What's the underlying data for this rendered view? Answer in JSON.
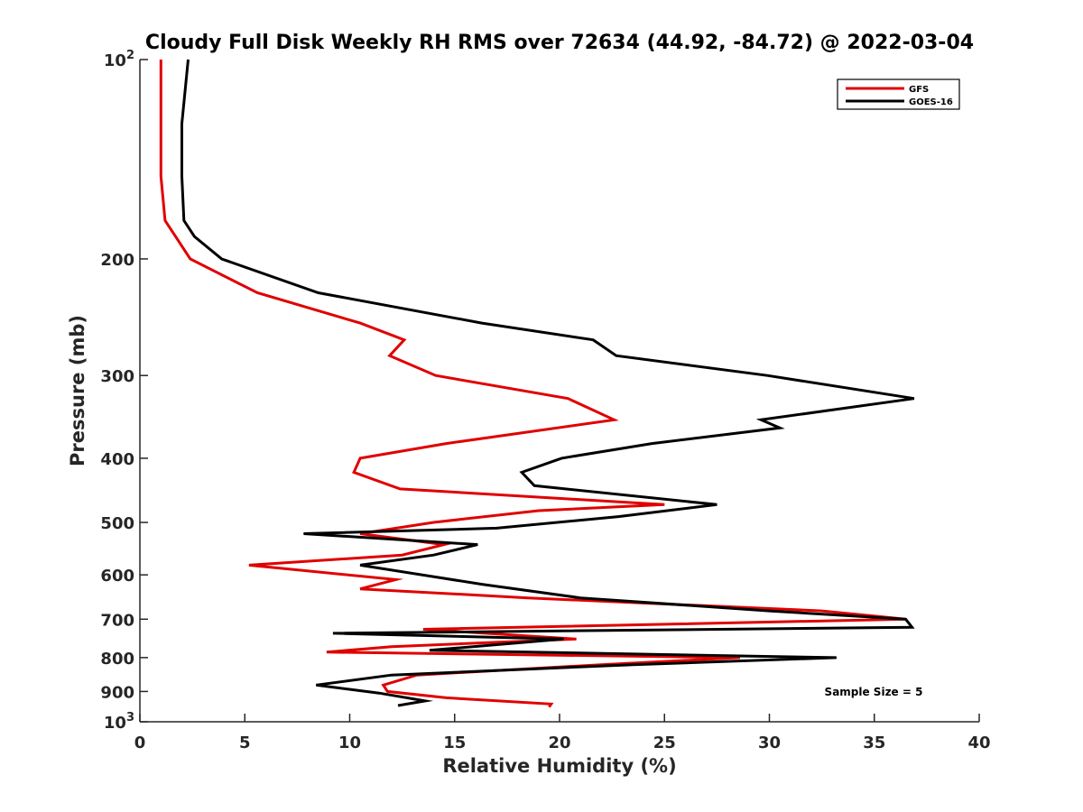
{
  "chart_data": {
    "type": "line",
    "title": "Cloudy Full Disk Weekly RH RMS over 72634 (44.92, -84.72) @ 2022-03-04",
    "xlabel": "Relative Humidity (%)",
    "ylabel": "Pressure (mb)",
    "xlim": [
      0,
      40
    ],
    "ylim": [
      1000,
      100
    ],
    "yscale": "log",
    "y_reversed": true,
    "x_ticks": [
      0,
      5,
      10,
      15,
      20,
      25,
      30,
      35,
      40
    ],
    "y_ticks": [
      {
        "value": 100,
        "label": "10",
        "sup": "2"
      },
      {
        "value": 200,
        "label": "200",
        "sup": ""
      },
      {
        "value": 300,
        "label": "300",
        "sup": ""
      },
      {
        "value": 400,
        "label": "400",
        "sup": ""
      },
      {
        "value": 500,
        "label": "500",
        "sup": ""
      },
      {
        "value": 600,
        "label": "600",
        "sup": ""
      },
      {
        "value": 700,
        "label": "700",
        "sup": ""
      },
      {
        "value": 800,
        "label": "800",
        "sup": ""
      },
      {
        "value": 900,
        "label": "900",
        "sup": ""
      },
      {
        "value": 1000,
        "label": "10",
        "sup": "3"
      }
    ],
    "grid": false,
    "legend_position": "top-right",
    "annotation": "Sample Size = 5",
    "series": [
      {
        "name": "GFS",
        "color": "#e00000",
        "points": [
          [
            1.0,
            100
          ],
          [
            1.0,
            125
          ],
          [
            1.0,
            150
          ],
          [
            1.2,
            175
          ],
          [
            1.7,
            185
          ],
          [
            2.4,
            200
          ],
          [
            5.6,
            225
          ],
          [
            10.5,
            250
          ],
          [
            12.6,
            265
          ],
          [
            11.9,
            280
          ],
          [
            14.1,
            300
          ],
          [
            20.4,
            325
          ],
          [
            22.6,
            350
          ],
          [
            14.6,
            380
          ],
          [
            10.5,
            400
          ],
          [
            10.2,
            420
          ],
          [
            12.4,
            445
          ],
          [
            25.0,
            470
          ],
          [
            19.0,
            480
          ],
          [
            14.0,
            500
          ],
          [
            10.5,
            520
          ],
          [
            14.5,
            540
          ],
          [
            12.5,
            560
          ],
          [
            5.2,
            580
          ],
          [
            12.2,
            610
          ],
          [
            10.5,
            630
          ],
          [
            18.5,
            650
          ],
          [
            32.5,
            680
          ],
          [
            36.5,
            700
          ],
          [
            13.5,
            725
          ],
          [
            20.8,
            750
          ],
          [
            12.0,
            770
          ],
          [
            8.9,
            785
          ],
          [
            28.6,
            800
          ],
          [
            22.0,
            820
          ],
          [
            13.2,
            850
          ],
          [
            11.6,
            880
          ],
          [
            11.8,
            900
          ],
          [
            14.6,
            920
          ],
          [
            19.6,
            940
          ],
          [
            19.5,
            950
          ]
        ]
      },
      {
        "name": "GOES-16",
        "color": "#000000",
        "points": [
          [
            2.3,
            100
          ],
          [
            2.0,
            125
          ],
          [
            2.0,
            150
          ],
          [
            2.1,
            175
          ],
          [
            2.6,
            185
          ],
          [
            3.9,
            200
          ],
          [
            8.5,
            225
          ],
          [
            16.3,
            250
          ],
          [
            21.6,
            265
          ],
          [
            22.7,
            280
          ],
          [
            29.9,
            300
          ],
          [
            36.9,
            325
          ],
          [
            29.6,
            350
          ],
          [
            30.5,
            360
          ],
          [
            24.4,
            380
          ],
          [
            20.1,
            400
          ],
          [
            18.2,
            420
          ],
          [
            18.8,
            440
          ],
          [
            27.5,
            470
          ],
          [
            22.8,
            490
          ],
          [
            17.0,
            510
          ],
          [
            7.8,
            520
          ],
          [
            16.1,
            540
          ],
          [
            14.0,
            560
          ],
          [
            10.5,
            580
          ],
          [
            16.3,
            620
          ],
          [
            21.0,
            650
          ],
          [
            30.0,
            680
          ],
          [
            36.5,
            700
          ],
          [
            36.8,
            720
          ],
          [
            9.2,
            735
          ],
          [
            20.2,
            750
          ],
          [
            13.8,
            780
          ],
          [
            33.2,
            800
          ],
          [
            23.5,
            820
          ],
          [
            12.0,
            850
          ],
          [
            8.4,
            880
          ],
          [
            11.4,
            905
          ],
          [
            13.6,
            930
          ],
          [
            12.3,
            945
          ]
        ]
      }
    ]
  }
}
